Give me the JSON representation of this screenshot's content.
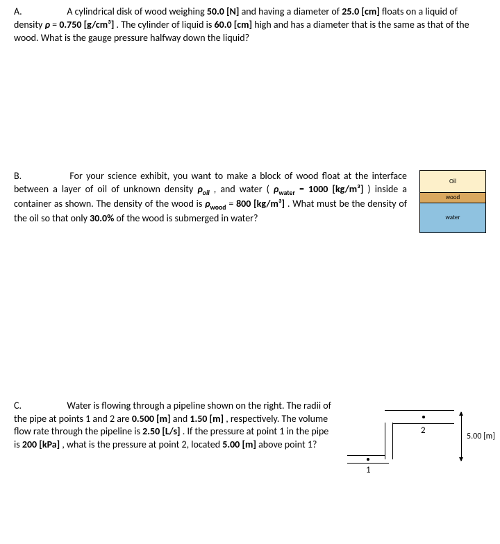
{
  "problemA": {
    "letter": "A.",
    "text_1": "A cylindrical disk of wood weighing ",
    "weight": "50.0 [N]",
    "text_2": " and having a diameter of ",
    "diameter": "25.0 [cm]",
    "text_3": " floats on a liquid of density ",
    "rho_sym": "ρ",
    "eq": " = ",
    "density": "0.750 [g/cm³]",
    "text_4": ". The cylinder of liquid is ",
    "height": "60.0 [cm]",
    "text_5": " high and has a diameter that is the same as that of the wood. What is the gauge pressure halfway down the liquid?"
  },
  "problemB": {
    "letter": "B.",
    "text_1": "For your science exhibit, you want to make a block of wood float at the interface between a layer of oil of unknown density ",
    "rho_oil": "ρ",
    "oil_sub": "oil",
    "comma": ", and water (",
    "rho_water": "ρ",
    "water_sub": "water",
    "eq1": " = ",
    "water_density": "1000 [kg/m³]",
    "text_2": ") inside a container as shown. The density of the wood is ",
    "rho_wood": "ρ",
    "wood_sub": "wood",
    "eq2": " = ",
    "wood_density": "800 [kg/m³]",
    "text_3": ". What must be the density of the oil so that only ",
    "percent": "30.0%",
    "text_4": " of the wood is submerged in water?",
    "diagram": {
      "oil_label": "Oil",
      "wood_label": "wood",
      "water_label": "water",
      "oil_color": "#fdf0ca",
      "wood_color": "#d9a85f",
      "water_color": "#8fc2e0",
      "oil_h": 32,
      "wood_h": 15,
      "water_h": 42
    }
  },
  "problemC": {
    "letter": "C.",
    "text_1": "Water is flowing through a pipeline shown on the right. The radii of the pipe at points 1 and 2 are ",
    "r1": "0.500 [m]",
    "and": " and ",
    "r2": "1.50 [m]",
    "text_2": ", respectively. The volume flow rate through the pipeline is ",
    "flow": "2.50 [L/s]",
    "text_3": ". If the pressure at point 1 in the pipe is ",
    "pressure": "200 [kPa]",
    "text_4": ", what is the pressure at point 2, located ",
    "dist": "5.00 [m]",
    "text_5": " above point 1?",
    "diagram": {
      "pt1": "1",
      "pt2": "2",
      "height_label": "5.00 [m]"
    }
  }
}
